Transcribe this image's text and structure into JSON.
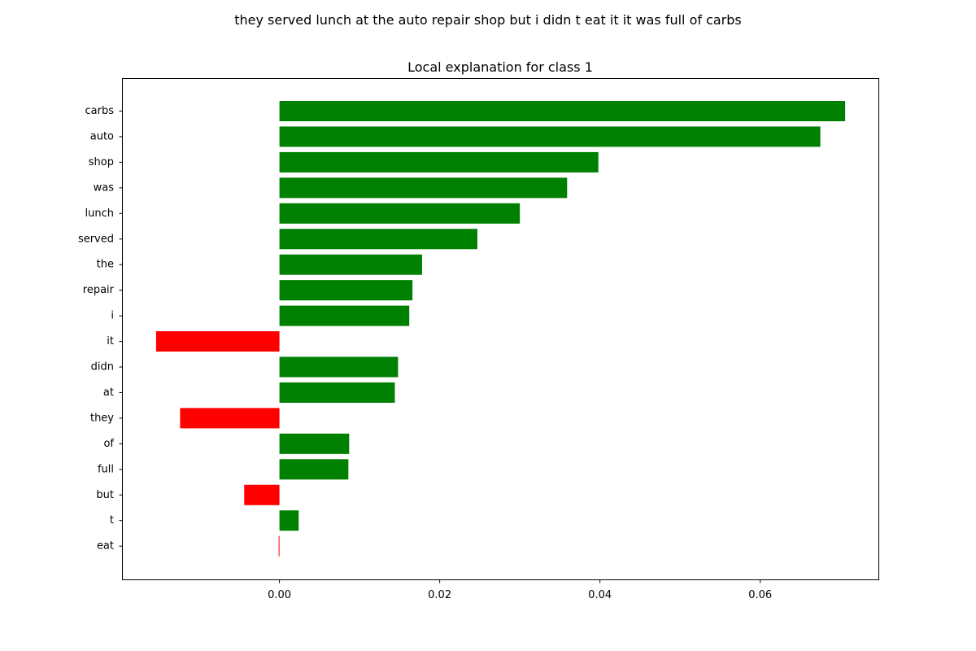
{
  "chart_data": {
    "type": "bar",
    "orientation": "horizontal",
    "suptitle": "they served lunch at the auto repair shop but i didn t eat it it was full of carbs",
    "title": "Local explanation for class 1",
    "categories": [
      "carbs",
      "auto",
      "shop",
      "was",
      "lunch",
      "served",
      "the",
      "repair",
      "i",
      "it",
      "didn",
      "at",
      "they",
      "of",
      "full",
      "but",
      "t",
      "eat"
    ],
    "values": [
      0.0706,
      0.0675,
      0.0398,
      0.0359,
      0.03,
      0.0247,
      0.0178,
      0.0166,
      0.0162,
      -0.0154,
      0.0148,
      0.0144,
      -0.0124,
      0.0087,
      0.0086,
      -0.0044,
      0.0024,
      -0.0001
    ],
    "xticks": [
      0.0,
      0.02,
      0.04,
      0.06
    ],
    "xtick_labels": [
      "0.00",
      "0.02",
      "0.04",
      "0.06"
    ],
    "xlim": [
      -0.0196,
      0.0748
    ],
    "xlabel": "",
    "ylabel": "",
    "grid": false,
    "colors": {
      "positive": "#008000",
      "negative": "#ff0000",
      "axes": "#000000",
      "text": "#000000"
    }
  }
}
